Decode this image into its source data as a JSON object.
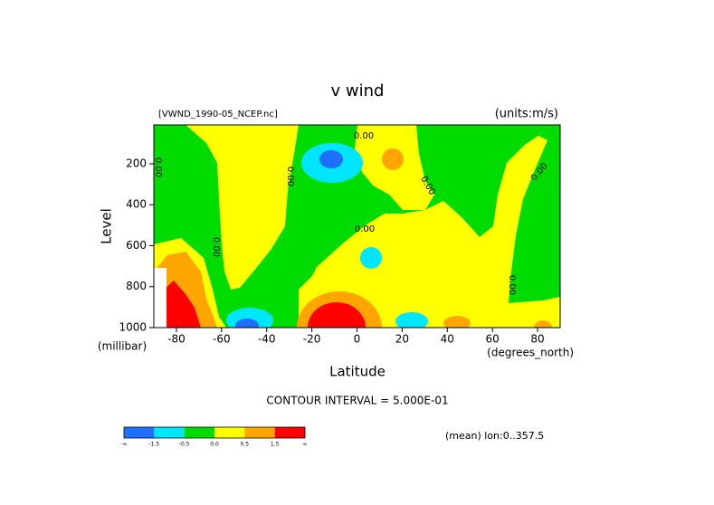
{
  "chart_data": {
    "type": "contour",
    "title": "v wind",
    "source": "[VWND_1990-05_NCEP.nc]",
    "units": "(units:m/s)",
    "xlabel": "Latitude",
    "xunits": "(degrees_north)",
    "ylabel": "Level",
    "yunits": "(millibar)",
    "xlim": [
      -90,
      90
    ],
    "xticks": [
      -80,
      -60,
      -40,
      -20,
      0,
      20,
      40,
      60,
      80
    ],
    "ylim": [
      1000,
      10
    ],
    "yticks": [
      200,
      400,
      600,
      800,
      1000
    ],
    "contour_labels": [
      "0.00",
      "0.00",
      "0.00",
      "0.00",
      "0.00",
      "0.00",
      "0.00",
      "0.00"
    ],
    "annotation": "CONTOUR INTERVAL = 5.000E-01",
    "colorbar": {
      "colors": [
        "#1e6eff",
        "#00e6ff",
        "#00dc00",
        "#ffff00",
        "#ffa500",
        "#ff0000"
      ],
      "labels": [
        "-∞",
        "-1.5",
        "-0.5",
        "0.0",
        "0.5",
        "1.5",
        "∞"
      ]
    },
    "note": "(mean) lon:0..357.5"
  }
}
